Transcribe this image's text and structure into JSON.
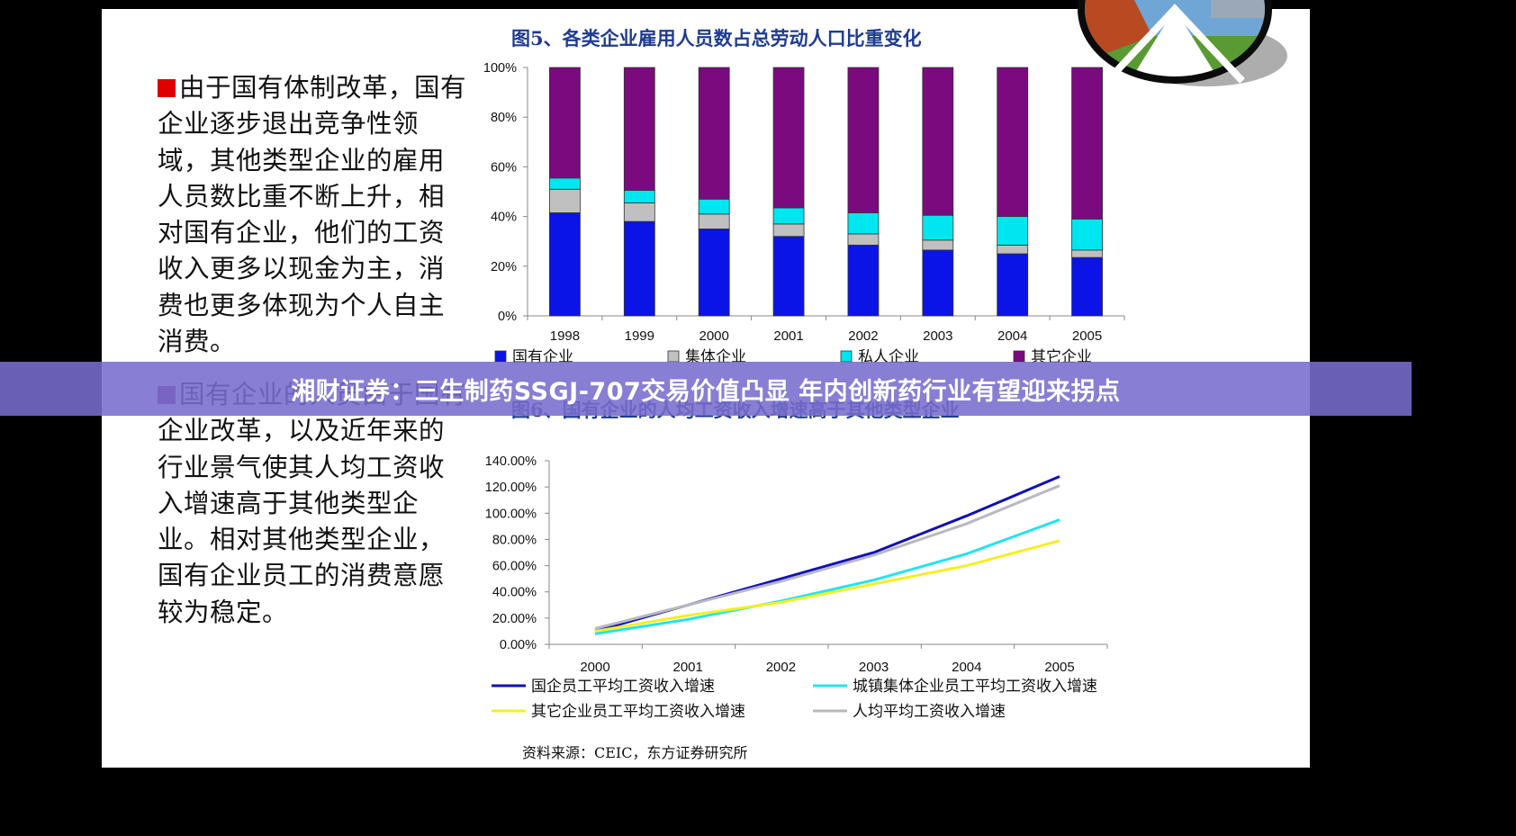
{
  "banner_text": "湘财证券：三生制药SSGJ-707交易价值凸显 年内创新药行业有望迎来拐点",
  "text_blocks": [
    {
      "bullet_color": "#e00000",
      "text": "由于国有体制改革，国有企业逐步退出竞争性领域，其他类型企业的雇用人员数比重不断上升，相对国有企业，他们的工资收入更多以现金为主，消费也更多体现为个人自主消费。"
    },
    {
      "bullet_color": "#8e2a7e",
      "text": "国有企业的人员由于国有企业改革，以及近年来的行业景气使其人均工资收入增速高于其他类型企业。相对其他类型企业，国有企业员工的消费意愿较为稳定。"
    }
  ],
  "source_text": "资料来源：CEIC，东方证券研究所",
  "chart_data": [
    {
      "type": "bar",
      "stacked": true,
      "title": "图5、各类企业雇用人员数占总劳动人口比重变化",
      "categories": [
        "1998",
        "1999",
        "2000",
        "2001",
        "2002",
        "2003",
        "2004",
        "2005"
      ],
      "y_ticks": [
        "0%",
        "20%",
        "40%",
        "60%",
        "80%",
        "100%"
      ],
      "ylim": [
        0,
        100
      ],
      "legend_position": "bottom",
      "series": [
        {
          "name": "国有企业",
          "color": "#0a14e6",
          "values": [
            41.5,
            38,
            35,
            32,
            28.5,
            26.5,
            25,
            23.5
          ]
        },
        {
          "name": "集体企业",
          "color": "#c0c0c0",
          "values": [
            9.5,
            7.5,
            6,
            5,
            4.5,
            4,
            3.5,
            3
          ]
        },
        {
          "name": "私人企业",
          "color": "#00e6f0",
          "values": [
            4.5,
            5,
            6,
            6.5,
            8.5,
            10,
            11.5,
            12.5
          ]
        },
        {
          "name": "其它企业",
          "color": "#7a0a7e",
          "values": [
            44.5,
            49.5,
            53,
            56.5,
            58.5,
            59.5,
            60,
            61
          ]
        }
      ]
    },
    {
      "type": "line",
      "title": "图6、国有企业的人均工资收入增速高于其他类型企业",
      "x": [
        "2000",
        "2001",
        "2002",
        "2003",
        "2004",
        "2005"
      ],
      "y_ticks": [
        "0.00%",
        "20.00%",
        "40.00%",
        "60.00%",
        "80.00%",
        "100.00%",
        "120.00%",
        "140.00%"
      ],
      "ylim": [
        0,
        140
      ],
      "legend_position": "bottom",
      "series": [
        {
          "name": "国企员工平均工资收入增速",
          "color": "#1010b8",
          "values": [
            10,
            30,
            50,
            70,
            98,
            128
          ]
        },
        {
          "name": "城镇集体企业员工平均工资收入增速",
          "color": "#22e4f0",
          "values": [
            8,
            19,
            33,
            49,
            69,
            95
          ]
        },
        {
          "name": "其它企业员工平均工资收入增速",
          "color": "#f4f020",
          "values": [
            10,
            22,
            32,
            46,
            60,
            79
          ]
        },
        {
          "name": "人均平均工资收入增速",
          "color": "#b8b8c0",
          "values": [
            12,
            30,
            48,
            68,
            92,
            121
          ]
        }
      ]
    }
  ]
}
